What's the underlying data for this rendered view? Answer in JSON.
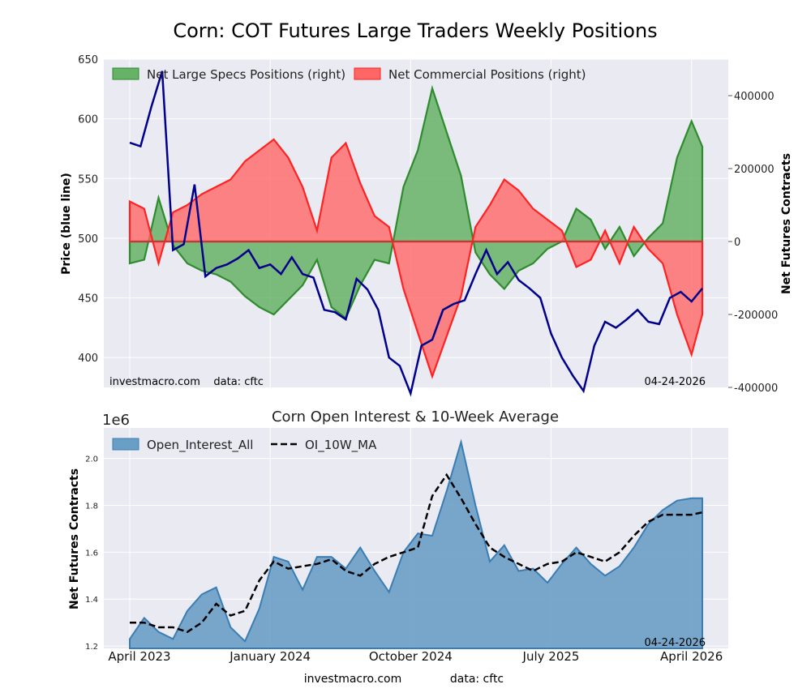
{
  "colors": {
    "panel_bg": "#eaeaf2",
    "price_line": "#00008b",
    "specs_fill": "#66b266",
    "specs_line": "#2e8b2e",
    "comm_fill": "#ff6666",
    "comm_line": "#ff2222",
    "oi_fill": "#6a9fc5",
    "oi_line": "#3a7db5",
    "ma_line": "#000000"
  },
  "chart_data": [
    {
      "type": "line",
      "title": "Corn: COT Futures Large Traders Weekly Positions",
      "ylabel_left": "Price (blue line)",
      "ylabel_right": "Net Futures Contracts",
      "ylim_left": [
        375,
        650
      ],
      "ylim_right": [
        -400000,
        500000
      ],
      "yticks_left": [
        "650",
        "600",
        "550",
        "500",
        "450",
        "400"
      ],
      "yticks_right": [
        "400000",
        "200000",
        "0",
        "-200000",
        "-400000"
      ],
      "legend_placement": "top-left",
      "legend": [
        "Net Large Specs Positions (right)",
        "Net Commercial Positions (right)"
      ],
      "watermark": "investmacro.com    data: cftc",
      "date_label": "04-24-2026",
      "grid": true,
      "x_start": "2023-04-07",
      "x_step_weeks": 1,
      "x_end": "2026-04-24",
      "price": {
        "name": "Price (blue line)",
        "x": [
          "2023-04-07",
          "2023-04-28",
          "2023-05-19",
          "2023-06-09",
          "2023-06-30",
          "2023-07-21",
          "2023-08-11",
          "2023-09-01",
          "2023-09-22",
          "2023-10-13",
          "2023-11-03",
          "2023-11-24",
          "2023-12-15",
          "2024-01-05",
          "2024-01-26",
          "2024-02-16",
          "2024-03-08",
          "2024-03-29",
          "2024-04-19",
          "2024-05-10",
          "2024-05-31",
          "2024-06-21",
          "2024-07-12",
          "2024-08-02",
          "2024-08-23",
          "2024-09-13",
          "2024-10-04",
          "2024-10-25",
          "2024-11-15",
          "2024-12-06",
          "2024-12-27",
          "2025-01-17",
          "2025-02-07",
          "2025-02-28",
          "2025-03-21",
          "2025-04-11",
          "2025-05-02",
          "2025-05-23",
          "2025-06-13",
          "2025-07-04",
          "2025-07-25",
          "2025-08-15",
          "2025-09-05",
          "2025-09-26",
          "2025-10-17",
          "2025-11-07",
          "2025-11-28",
          "2025-12-19",
          "2026-01-09",
          "2026-01-30",
          "2026-02-20",
          "2026-03-13",
          "2026-04-03",
          "2026-04-24"
        ],
        "values": [
          580,
          577,
          610,
          640,
          490,
          495,
          545,
          468,
          475,
          478,
          483,
          490,
          475,
          478,
          470,
          484,
          470,
          467,
          440,
          438,
          432,
          466,
          457,
          440,
          400,
          393,
          370,
          410,
          415,
          440,
          445,
          448,
          470,
          490,
          470,
          480,
          465,
          458,
          450,
          420,
          400,
          385,
          372,
          410,
          430,
          425,
          432,
          440,
          430,
          428,
          450,
          455,
          447,
          458
        ]
      },
      "series": [
        {
          "name": "Net Large Specs Positions (right)",
          "x": [
            "2023-04-07",
            "2023-05-05",
            "2023-06-02",
            "2023-06-30",
            "2023-07-28",
            "2023-08-25",
            "2023-09-22",
            "2023-10-20",
            "2023-11-17",
            "2023-12-15",
            "2024-01-12",
            "2024-02-09",
            "2024-03-08",
            "2024-04-05",
            "2024-05-03",
            "2024-05-31",
            "2024-06-28",
            "2024-07-26",
            "2024-08-23",
            "2024-09-20",
            "2024-10-18",
            "2024-11-15",
            "2024-12-13",
            "2025-01-10",
            "2025-02-07",
            "2025-03-07",
            "2025-04-04",
            "2025-05-02",
            "2025-05-30",
            "2025-06-27",
            "2025-07-25",
            "2025-08-22",
            "2025-09-19",
            "2025-10-17",
            "2025-11-14",
            "2025-12-12",
            "2026-01-09",
            "2026-02-06",
            "2026-03-06",
            "2026-04-03",
            "2026-04-24"
          ],
          "values": [
            -60000,
            -50000,
            120000,
            -10000,
            -60000,
            -80000,
            -90000,
            -110000,
            -150000,
            -180000,
            -200000,
            -160000,
            -120000,
            -50000,
            -180000,
            -210000,
            -120000,
            -50000,
            -60000,
            150000,
            250000,
            420000,
            300000,
            180000,
            -30000,
            -90000,
            -130000,
            -80000,
            -60000,
            -20000,
            0,
            90000,
            60000,
            -20000,
            40000,
            -40000,
            10000,
            50000,
            230000,
            330000,
            260000
          ]
        },
        {
          "name": "Net Commercial Positions (right)",
          "x": [
            "2023-04-07",
            "2023-05-05",
            "2023-06-02",
            "2023-06-30",
            "2023-07-28",
            "2023-08-25",
            "2023-09-22",
            "2023-10-20",
            "2023-11-17",
            "2023-12-15",
            "2024-01-12",
            "2024-02-09",
            "2024-03-08",
            "2024-04-05",
            "2024-05-03",
            "2024-05-31",
            "2024-06-28",
            "2024-07-26",
            "2024-08-23",
            "2024-09-20",
            "2024-10-18",
            "2024-11-15",
            "2024-12-13",
            "2025-01-10",
            "2025-02-07",
            "2025-03-07",
            "2025-04-04",
            "2025-05-02",
            "2025-05-30",
            "2025-06-27",
            "2025-07-25",
            "2025-08-22",
            "2025-09-19",
            "2025-10-17",
            "2025-11-14",
            "2025-12-12",
            "2026-01-09",
            "2026-02-06",
            "2026-03-06",
            "2026-04-03",
            "2026-04-24"
          ],
          "values": [
            110000,
            90000,
            -60000,
            80000,
            100000,
            130000,
            150000,
            170000,
            220000,
            250000,
            280000,
            230000,
            150000,
            30000,
            230000,
            270000,
            160000,
            70000,
            40000,
            -130000,
            -250000,
            -370000,
            -260000,
            -150000,
            40000,
            100000,
            170000,
            140000,
            90000,
            60000,
            30000,
            -70000,
            -50000,
            30000,
            -60000,
            40000,
            -20000,
            -60000,
            -200000,
            -310000,
            -200000
          ]
        }
      ]
    },
    {
      "type": "area",
      "title": "Corn Open Interest & 10-Week Average",
      "ylabel": "Net Futures Contracts",
      "y_scale_label": "1e6",
      "ylim": [
        1.19,
        2.13
      ],
      "yticks": [
        "2.0",
        "1.8",
        "1.6",
        "1.4",
        "1.2"
      ],
      "xticks": [
        "April 2023",
        "January 2024",
        "October 2024",
        "July 2025",
        "April 2026"
      ],
      "legend_placement": "top-left",
      "legend": [
        "Open_Interest_All",
        "OI_10W_MA"
      ],
      "date_label": "04-24-2026",
      "grid": true,
      "series": [
        {
          "name": "Open_Interest_All",
          "x": [
            "2023-04-07",
            "2023-05-05",
            "2023-06-02",
            "2023-06-30",
            "2023-07-28",
            "2023-08-25",
            "2023-09-22",
            "2023-10-20",
            "2023-11-17",
            "2023-12-15",
            "2024-01-12",
            "2024-02-09",
            "2024-03-08",
            "2024-04-05",
            "2024-05-03",
            "2024-05-31",
            "2024-06-28",
            "2024-07-26",
            "2024-08-23",
            "2024-09-20",
            "2024-10-18",
            "2024-11-15",
            "2024-12-13",
            "2025-01-10",
            "2025-02-07",
            "2025-03-07",
            "2025-04-04",
            "2025-05-02",
            "2025-05-30",
            "2025-06-27",
            "2025-07-25",
            "2025-08-22",
            "2025-09-19",
            "2025-10-17",
            "2025-11-14",
            "2025-12-12",
            "2026-01-09",
            "2026-02-06",
            "2026-03-06",
            "2026-04-03",
            "2026-04-24"
          ],
          "values": [
            1.23,
            1.32,
            1.26,
            1.23,
            1.35,
            1.42,
            1.45,
            1.28,
            1.22,
            1.36,
            1.58,
            1.56,
            1.44,
            1.58,
            1.58,
            1.53,
            1.62,
            1.52,
            1.43,
            1.6,
            1.68,
            1.67,
            1.86,
            2.07,
            1.8,
            1.56,
            1.63,
            1.52,
            1.53,
            1.47,
            1.55,
            1.62,
            1.55,
            1.5,
            1.54,
            1.62,
            1.72,
            1.78,
            1.82,
            1.83,
            1.83
          ]
        },
        {
          "name": "OI_10W_MA",
          "x": [
            "2023-04-07",
            "2023-05-05",
            "2023-06-02",
            "2023-06-30",
            "2023-07-28",
            "2023-08-25",
            "2023-09-22",
            "2023-10-20",
            "2023-11-17",
            "2023-12-15",
            "2024-01-12",
            "2024-02-09",
            "2024-03-08",
            "2024-04-05",
            "2024-05-03",
            "2024-05-31",
            "2024-06-28",
            "2024-07-26",
            "2024-08-23",
            "2024-09-20",
            "2024-10-18",
            "2024-11-15",
            "2024-12-13",
            "2025-01-10",
            "2025-02-07",
            "2025-03-07",
            "2025-04-04",
            "2025-05-02",
            "2025-05-30",
            "2025-06-27",
            "2025-07-25",
            "2025-08-22",
            "2025-09-19",
            "2025-10-17",
            "2025-11-14",
            "2025-12-12",
            "2026-01-09",
            "2026-02-06",
            "2026-03-06",
            "2026-04-03",
            "2026-04-24"
          ],
          "values": [
            1.3,
            1.3,
            1.28,
            1.28,
            1.26,
            1.3,
            1.38,
            1.33,
            1.35,
            1.48,
            1.56,
            1.53,
            1.54,
            1.55,
            1.57,
            1.52,
            1.5,
            1.55,
            1.58,
            1.6,
            1.62,
            1.84,
            1.93,
            1.83,
            1.72,
            1.62,
            1.58,
            1.55,
            1.52,
            1.55,
            1.56,
            1.6,
            1.58,
            1.56,
            1.6,
            1.67,
            1.73,
            1.76,
            1.76,
            1.76,
            1.77
          ]
        }
      ]
    }
  ],
  "footer": {
    "site": "investmacro.com",
    "source": "data: cftc"
  }
}
